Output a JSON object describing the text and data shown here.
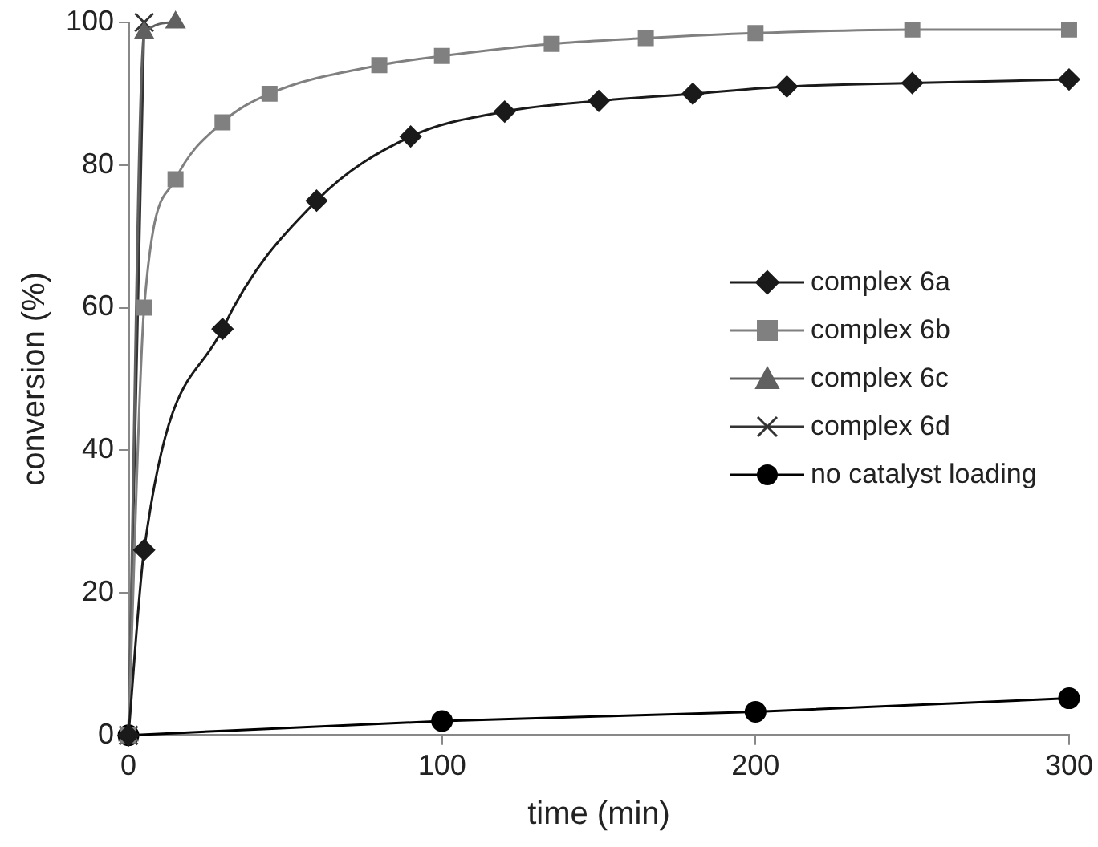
{
  "chart_data": {
    "type": "line",
    "xlabel": "time (min)",
    "ylabel": "conversion (%)",
    "xlim": [
      0,
      300
    ],
    "xticks": [
      0,
      100,
      200,
      300
    ],
    "ylim": [
      0,
      100
    ],
    "yticks": [
      0,
      20,
      40,
      60,
      80,
      100
    ],
    "grid": false,
    "legend": "right",
    "series": [
      {
        "name": "complex 6a",
        "color": "#1a1a1a",
        "marker": "diamond",
        "x": [
          0,
          5,
          30,
          60,
          90,
          120,
          150,
          180,
          210,
          250,
          300
        ],
        "values": [
          0,
          26,
          57,
          75,
          84,
          87.5,
          89,
          90,
          91,
          91.5,
          92
        ]
      },
      {
        "name": "complex 6b",
        "color": "#808080",
        "marker": "square",
        "x": [
          0,
          5,
          15,
          30,
          45,
          80,
          100,
          135,
          165,
          200,
          250,
          300
        ],
        "values": [
          0,
          60,
          78,
          86,
          90,
          94,
          95.3,
          97,
          97.8,
          98.5,
          99,
          99
        ]
      },
      {
        "name": "complex 6c",
        "color": "#606060",
        "marker": "triangle",
        "x": [
          0,
          5,
          15
        ],
        "values": [
          0,
          98.5,
          100
        ]
      },
      {
        "name": "complex 6d",
        "color": "#333333",
        "marker": "cross",
        "x": [
          0,
          5
        ],
        "values": [
          0,
          100
        ]
      },
      {
        "name": "no catalyst loading",
        "color": "#000000",
        "marker": "circle",
        "x": [
          0,
          100,
          200,
          300
        ],
        "values": [
          0,
          2,
          3.3,
          5.2
        ]
      }
    ]
  }
}
